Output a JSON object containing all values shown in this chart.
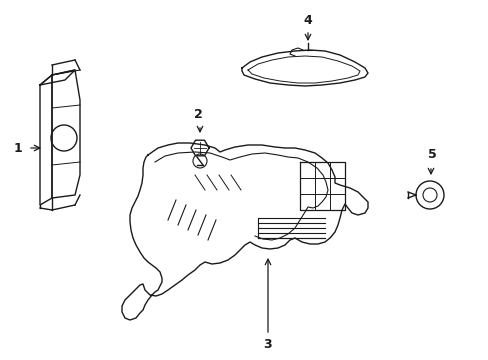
{
  "background_color": "#ffffff",
  "line_color": "#1a1a1a",
  "line_width": 1.0,
  "figure_width": 4.89,
  "figure_height": 3.6,
  "dpi": 100
}
